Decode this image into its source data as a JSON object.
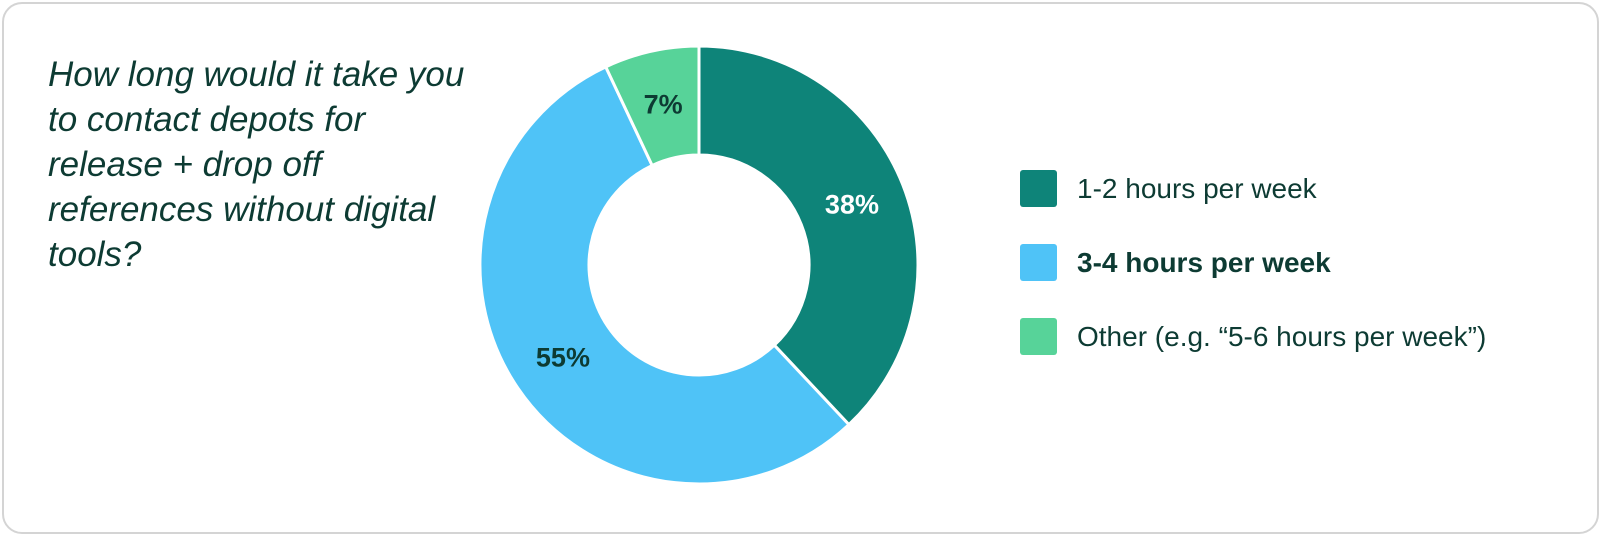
{
  "chart_data": {
    "type": "pie",
    "title": "How long would it take you to contact depots for release + drop off references without digital tools?",
    "categories": [
      "1-2 hours per week",
      "3-4 hours per week",
      "Other (e.g. “5-6 hours per week”)"
    ],
    "values": [
      38,
      55,
      7
    ],
    "data_labels": [
      "38%",
      "55%",
      "7%"
    ],
    "colors": [
      "#0e8479",
      "#4fc3f7",
      "#57d399"
    ],
    "label_colors": [
      "#ffffff",
      "#0d3b33",
      "#0d3b33"
    ],
    "highlighted_category": "3-4 hours per week",
    "legend_placement": "right",
    "donut": true
  }
}
